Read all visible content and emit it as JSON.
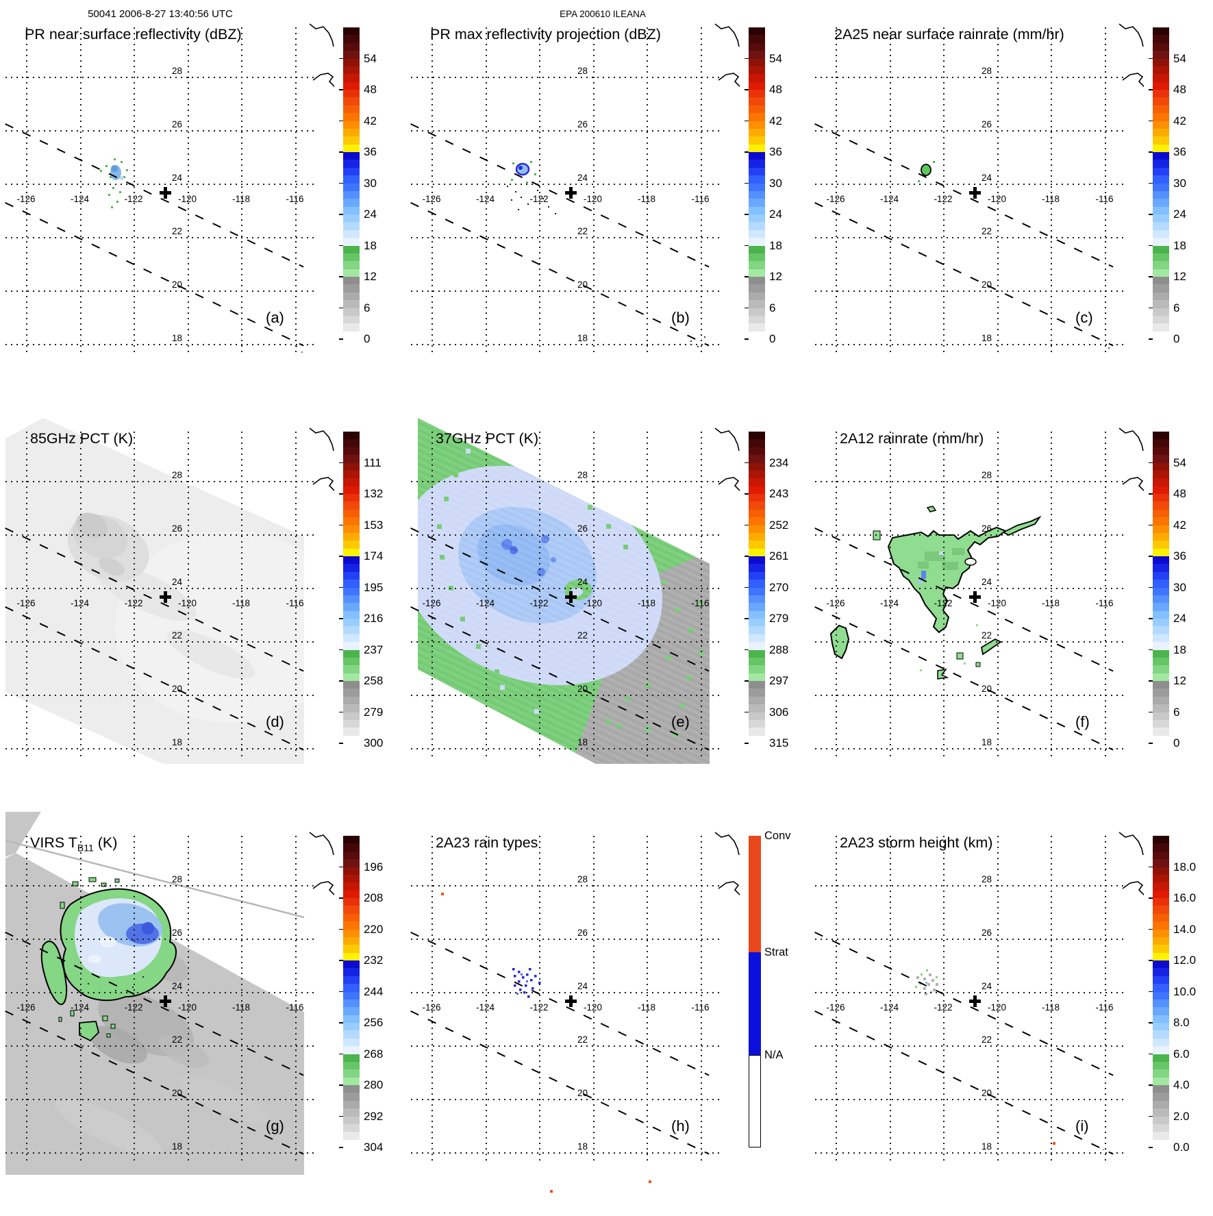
{
  "header": {
    "left": "50041 2006-8-27 13:40:56 UTC",
    "center": "EPA 200610 ILEANA"
  },
  "map_grid": {
    "lon_labels": [
      "-126",
      "-124",
      "-122",
      "-120",
      "-118",
      "-116"
    ],
    "lat_labels": [
      "28",
      "26",
      "24",
      "22",
      "20",
      "18"
    ]
  },
  "storm_marker": {
    "symbol": "+",
    "approx_lon": -120.5,
    "approx_lat": 23.7
  },
  "palette": {
    "cluster_blue": "#86bae8",
    "cluster_green": "#4db84d",
    "swath_green": "#74cb74",
    "pale_blue": "#cdd9f7",
    "mid_blue": "#a6c6f4",
    "bright_blue": "#5b82ec",
    "swath_gray": "#a8a8a8",
    "tmi_gray": "#ededed",
    "virs_gray": "#c6c6c6",
    "rain_green": "#90dc90",
    "conv_orange": "#e8481b",
    "strat_blue": "#0b10dc",
    "speck_orange": "#e8551a"
  },
  "colorbar_gradient": [
    [
      "#2a0202",
      "#440707",
      "#570b0b",
      "#6e1212"
    ],
    [
      "#8f1206",
      "#ab1505",
      "#c61703",
      "#e01901"
    ],
    [
      "#e93207",
      "#f1490a",
      "#f75f05",
      "#fb7500"
    ],
    [
      "#fd8f00",
      "#fdab00",
      "#fec900",
      "#fff200"
    ],
    [
      "#0d0ad0",
      "#1524e4",
      "#2341f4",
      "#3160ff"
    ],
    [
      "#3f74ff",
      "#5590ff",
      "#6aa8ff",
      "#82c0ff"
    ],
    [
      "#98cdff",
      "#b4dbff",
      "#cfe7ff",
      "#e8f3ff"
    ],
    [
      "#4cb44c",
      "#66c566",
      "#82d682",
      "#a2e8a2"
    ],
    [
      "#8e8e8e",
      "#9c9c9c",
      "#ababab",
      "#bababa"
    ],
    [
      "#c9c9c9",
      "#d8d8d8",
      "#e9e9e9",
      "#ffffff"
    ]
  ],
  "panels": [
    {
      "id": "a",
      "letter": "(a)",
      "title": "PR near surface reflectivity (dBZ)",
      "colorbar_ticks": [
        "54",
        "48",
        "42",
        "36",
        "30",
        "24",
        "18",
        "12",
        "6",
        "0"
      ]
    },
    {
      "id": "b",
      "letter": "(b)",
      "title": "PR max reflectivity projection (dBZ)",
      "colorbar_ticks": [
        "54",
        "48",
        "42",
        "36",
        "30",
        "24",
        "18",
        "12",
        "6",
        "0"
      ]
    },
    {
      "id": "c",
      "letter": "(c)",
      "title": "2A25 near surface rainrate (mm/hr)",
      "colorbar_ticks": [
        "54",
        "48",
        "42",
        "36",
        "30",
        "24",
        "18",
        "12",
        "6",
        "0"
      ]
    },
    {
      "id": "d",
      "letter": "(d)",
      "title": "85GHz PCT (K)",
      "colorbar_ticks": [
        "111",
        "132",
        "153",
        "174",
        "195",
        "216",
        "237",
        "258",
        "279",
        "300"
      ]
    },
    {
      "id": "e",
      "letter": "(e)",
      "title": "37GHz PCT (K)",
      "colorbar_ticks": [
        "234",
        "243",
        "252",
        "261",
        "270",
        "279",
        "288",
        "297",
        "306",
        "315"
      ]
    },
    {
      "id": "f",
      "letter": "(f)",
      "title": "2A12 rainrate (mm/hr)",
      "colorbar_ticks": [
        "54",
        "48",
        "42",
        "36",
        "30",
        "24",
        "18",
        "12",
        "6",
        "0"
      ]
    },
    {
      "id": "g",
      "letter": "(g)",
      "title": "VIRS T",
      "title_sub": "B11",
      "title_suffix": " (K)",
      "colorbar_ticks": [
        "196",
        "208",
        "220",
        "232",
        "244",
        "256",
        "268",
        "280",
        "292",
        "304"
      ]
    },
    {
      "id": "h",
      "letter": "(h)",
      "title": "2A23 rain types",
      "rain_types": [
        {
          "label": "Conv",
          "color": "#e8481b"
        },
        {
          "label": "Strat",
          "color": "#0b10dc"
        },
        {
          "label": "N/A",
          "color": "#ffffff"
        }
      ]
    },
    {
      "id": "i",
      "letter": "(i)",
      "title": "2A23 storm height (km)",
      "colorbar_ticks": [
        "18.0",
        "16.0",
        "14.0",
        "12.0",
        "10.0",
        "8.0",
        "6.0",
        "4.0",
        "2.0",
        "0.0"
      ]
    }
  ],
  "chart_data": {
    "type": "heatmap",
    "title": "TRMM orbit 50041 multi-sensor overview of EPA 200610 ILEANA, 2006-8-27 13:40:56 UTC",
    "layout": "3x3 panel grid of lat-lon maps, shared geographic extent, vertical colorbar right of each panel",
    "map_extent": {
      "lon_range": [
        -127.7,
        -114.9
      ],
      "lat_range": [
        17.2,
        29.3
      ]
    },
    "grid": {
      "lon_ticks": [
        -126,
        -124,
        -122,
        -120,
        -118,
        -116
      ],
      "lat_ticks": [
        28,
        26,
        24,
        22,
        20,
        18
      ],
      "gridlines": "dotted"
    },
    "storm_center": {
      "lon": -120.5,
      "lat": 23.7,
      "marker": "bold plus"
    },
    "swath_edge_lines": "two parallel black dashed lines sloping down-right (PR swath edges)",
    "panels": [
      {
        "letter": "(a)",
        "title": "PR near surface reflectivity (dBZ)",
        "colorbar_ticks": [
          54,
          48,
          42,
          36,
          30,
          24,
          18,
          12,
          6,
          0
        ],
        "depicts": "small blue/green echo cluster near lon -122.8, lat 24"
      },
      {
        "letter": "(b)",
        "title": "PR max reflectivity projection (dBZ)",
        "colorbar_ticks": [
          54,
          48,
          42,
          36,
          30,
          24,
          18,
          12,
          6,
          0
        ],
        "depicts": "slightly larger echo cluster with dark blue ring near lon -122.8, lat 24 plus scattered specks"
      },
      {
        "letter": "(c)",
        "title": "2A25 near surface rainrate (mm/hr)",
        "colorbar_ticks": [
          54,
          48,
          42,
          36,
          30,
          24,
          18,
          12,
          6,
          0
        ],
        "depicts": "small outlined green rain cluster near lon -122.8, lat 24"
      },
      {
        "letter": "(d)",
        "title": "85GHz PCT (K)",
        "colorbar_ticks": [
          111,
          132,
          153,
          174,
          195,
          216,
          237,
          258,
          279,
          300
        ],
        "depicts": "wide diagonal TMI swath of near-300K light gray with subtle darker patch near lon -124, lat 25.5"
      },
      {
        "letter": "(e)",
        "title": "37GHz PCT (K)",
        "colorbar_ticks": [
          234,
          243,
          252,
          261,
          270,
          279,
          288,
          297,
          306,
          315
        ],
        "depicts": "diagonal swath: green ~290K background, large pale/medium blue 270-285K cyclone region centered near lon -123, lat 24.5, gray ~300K lower right"
      },
      {
        "letter": "(f)",
        "title": "2A12 rainrate (mm/hr)",
        "colorbar_ticks": [
          54,
          48,
          42,
          36,
          30,
          24,
          18,
          12,
          6,
          0
        ],
        "depicts": "black-outlined light green light-rain blobs: main area lon -124..-121 lat 23..26 with NE arm, small islands near lon -126 lat 21.5 and lon -120 lat 21"
      },
      {
        "letter": "(g)",
        "title": "VIRS TB11 (K)",
        "colorbar_ticks": [
          196,
          208,
          220,
          232,
          244,
          256,
          268,
          280,
          292,
          304
        ],
        "depicts": "gray ~285K cloud field with cold cirrus shield: green 268K outlined ring, pale blue 256K and blue 244K core near lon -123, lat 25.5-26.5; white no-data wedge top right"
      },
      {
        "letter": "(h)",
        "title": "2A23 rain types",
        "categories": [
          "Conv",
          "Strat",
          "N/A"
        ],
        "depicts": "cluster of stratiform (blue) pixels near lon -123, lat 24 with a few convective (orange) specks"
      },
      {
        "letter": "(i)",
        "title": "2A23 storm height (km)",
        "colorbar_ticks": [
          18.0,
          16.0,
          14.0,
          12.0,
          10.0,
          8.0,
          6.0,
          4.0,
          2.0,
          0.0
        ],
        "depicts": "small cluster of 4-6 km (gray/green) storm-height pixels near lon -123, lat 24"
      }
    ]
  }
}
